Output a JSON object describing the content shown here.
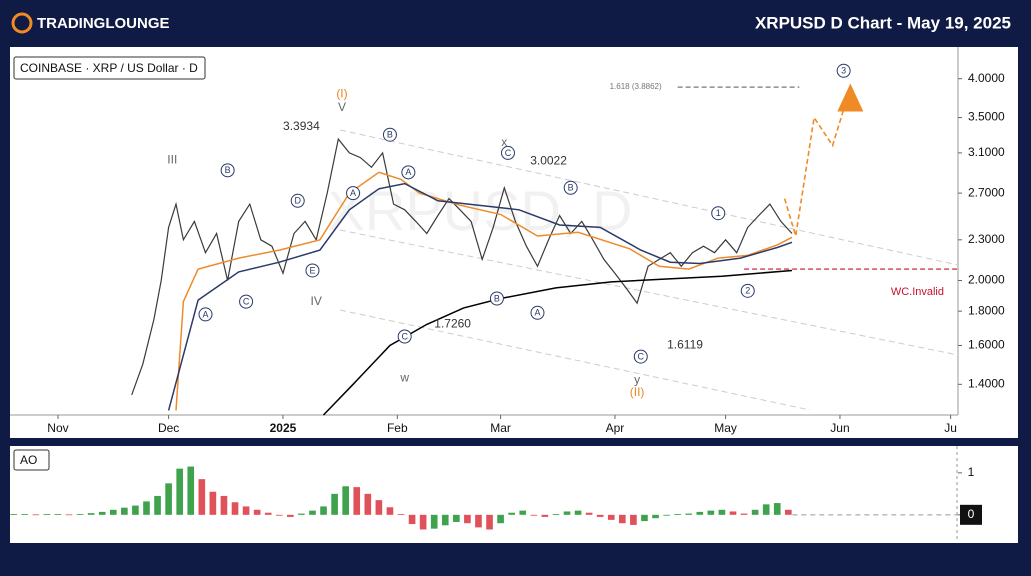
{
  "header": {
    "logo": "TRADINGLOUNGE",
    "title": "XRPUSD D Chart - May 19, 2025"
  },
  "chart_data": [
    {
      "type": "line",
      "title": "COINBASE · XRP / US Dollar · D",
      "watermark": "XRPUSD, D",
      "log_scale": true,
      "xlim": [
        -13,
        244
      ],
      "xticks": [
        {
          "value": 0,
          "label": "Nov"
        },
        {
          "value": 30,
          "label": "Dec"
        },
        {
          "value": 61,
          "label": "2025"
        },
        {
          "value": 92,
          "label": "Feb"
        },
        {
          "value": 120,
          "label": "Mar"
        },
        {
          "value": 151,
          "label": "Apr"
        },
        {
          "value": 181,
          "label": "May"
        },
        {
          "value": 212,
          "label": "Jun"
        },
        {
          "value": 242,
          "label": "Ju"
        }
      ],
      "ylim": [
        1.26,
        4.46
      ],
      "yticks": [
        {
          "value": 1.4,
          "label": "1.4000"
        },
        {
          "value": 1.6,
          "label": "1.6000"
        },
        {
          "value": 1.8,
          "label": "1.8000"
        },
        {
          "value": 2,
          "label": "2.0000"
        },
        {
          "value": 2.3,
          "label": "2.3000"
        },
        {
          "value": 2.7,
          "label": "2.7000"
        },
        {
          "value": 3.1,
          "label": "3.1000"
        },
        {
          "value": 3.5,
          "label": "3.5000"
        },
        {
          "value": 4,
          "label": "4.0000"
        }
      ],
      "series": [
        {
          "color": "#3a3a3a",
          "x": [
            20,
            23,
            26,
            28,
            30,
            32,
            34,
            37,
            40,
            43,
            46,
            49,
            52,
            55,
            58,
            61,
            64,
            67,
            70,
            73,
            76,
            79,
            82,
            85,
            88,
            91,
            94,
            97,
            100,
            103,
            106,
            109,
            112,
            115,
            118,
            121,
            124,
            127,
            130,
            133,
            136,
            139,
            142,
            145,
            148,
            151,
            154,
            157,
            160,
            163,
            166,
            169,
            172,
            175,
            178,
            181,
            184,
            187,
            190,
            193,
            196,
            199
          ],
          "values": [
            1.35,
            1.5,
            1.75,
            2.0,
            2.4,
            2.6,
            2.3,
            2.45,
            2.2,
            2.35,
            2.0,
            2.45,
            2.6,
            2.3,
            2.25,
            2.05,
            2.35,
            2.45,
            2.3,
            2.7,
            3.25,
            3.1,
            3.05,
            2.95,
            3.1,
            2.6,
            2.55,
            2.45,
            2.35,
            2.5,
            2.65,
            2.55,
            2.45,
            2.15,
            2.4,
            2.75,
            2.45,
            2.25,
            2.1,
            2.3,
            2.5,
            2.35,
            2.45,
            2.3,
            2.15,
            2.05,
            1.95,
            1.85,
            2.1,
            2.15,
            2.2,
            2.1,
            2.2,
            2.25,
            2.2,
            2.3,
            2.2,
            2.4,
            2.5,
            2.6,
            2.45,
            2.35
          ]
        },
        {
          "color": "#ef8a2a",
          "x": [
            32,
            34,
            38,
            49,
            60,
            71,
            79,
            87,
            93,
            98,
            109,
            120,
            130,
            141,
            155,
            163,
            171,
            179,
            187,
            195,
            199
          ],
          "values": [
            1.28,
            1.86,
            2.08,
            2.16,
            2.22,
            2.3,
            2.7,
            2.9,
            2.83,
            2.7,
            2.59,
            2.51,
            2.33,
            2.36,
            2.23,
            2.1,
            2.08,
            2.16,
            2.18,
            2.26,
            2.32
          ]
        },
        {
          "color": "#2b3a67",
          "x": [
            30,
            38,
            49,
            60,
            71,
            79,
            87,
            94,
            103,
            114,
            125,
            136,
            147,
            158,
            166,
            174,
            185,
            195,
            199
          ],
          "values": [
            1.28,
            1.87,
            2.06,
            2.13,
            2.22,
            2.55,
            2.74,
            2.79,
            2.63,
            2.59,
            2.55,
            2.42,
            2.4,
            2.22,
            2.13,
            2.12,
            2.16,
            2.24,
            2.28
          ]
        },
        {
          "color": "#000000",
          "x": [
            72,
            80,
            90,
            100,
            110,
            120,
            135,
            150,
            165,
            180,
            199
          ],
          "values": [
            1.26,
            1.4,
            1.6,
            1.72,
            1.82,
            1.88,
            1.95,
            1.99,
            2.01,
            2.03,
            2.07
          ]
        }
      ],
      "projection": {
        "color": "#f08a24",
        "x": [
          197,
          200,
          205,
          210,
          214
        ],
        "values": [
          2.65,
          2.33,
          3.5,
          3.18,
          3.75
        ]
      },
      "levels": [
        {
          "label": "1.618 (3.8862)",
          "value": 3.8862,
          "x": [
            168,
            201
          ],
          "color": "#777777"
        },
        {
          "label": "WC.Invalid",
          "value": 2.08,
          "x": [
            186,
            244
          ],
          "color": "#c8102e"
        }
      ],
      "annotations": [
        {
          "text": "(I)",
          "x": 77,
          "y": 3.79,
          "color": "#e8861f"
        },
        {
          "text": "V",
          "x": 77,
          "y": 3.62,
          "color": "#666666"
        },
        {
          "text": "3.3934",
          "x": 66,
          "y": 3.39,
          "color": "#333333"
        },
        {
          "text": "III",
          "x": 31,
          "y": 3.02,
          "color": "#666666"
        },
        {
          "text": "IV",
          "x": 70,
          "y": 1.86,
          "color": "#666666"
        },
        {
          "text": "w",
          "x": 94,
          "y": 1.43,
          "color": "#666666"
        },
        {
          "text": "x",
          "x": 121,
          "y": 3.21,
          "color": "#666666"
        },
        {
          "text": "3.0022",
          "x": 133,
          "y": 3.01,
          "color": "#333333"
        },
        {
          "text": "1.7260",
          "x": 107,
          "y": 1.72,
          "color": "#333333"
        },
        {
          "text": "1.6119",
          "x": 170,
          "y": 1.6,
          "color": "#333333"
        },
        {
          "text": "y",
          "x": 157,
          "y": 1.42,
          "color": "#666666"
        },
        {
          "text": "(II)",
          "x": 157,
          "y": 1.36,
          "color": "#e8861f"
        }
      ],
      "circled": [
        {
          "text": "B",
          "x": 46,
          "y": 2.92
        },
        {
          "text": "D",
          "x": 65,
          "y": 2.63
        },
        {
          "text": "A",
          "x": 40,
          "y": 1.78
        },
        {
          "text": "C",
          "x": 51,
          "y": 1.86
        },
        {
          "text": "E",
          "x": 69,
          "y": 2.07
        },
        {
          "text": "B",
          "x": 90,
          "y": 3.3
        },
        {
          "text": "A",
          "x": 80,
          "y": 2.7
        },
        {
          "text": "A",
          "x": 95,
          "y": 2.9
        },
        {
          "text": "C",
          "x": 94,
          "y": 1.65
        },
        {
          "text": "C",
          "x": 122,
          "y": 3.1
        },
        {
          "text": "B",
          "x": 139,
          "y": 2.75
        },
        {
          "text": "B",
          "x": 119,
          "y": 1.88
        },
        {
          "text": "A",
          "x": 130,
          "y": 1.79
        },
        {
          "text": "C",
          "x": 158,
          "y": 1.54
        },
        {
          "text": "1",
          "x": 179,
          "y": 2.52
        },
        {
          "text": "2",
          "x": 187,
          "y": 1.93
        },
        {
          "text": "3",
          "x": 213,
          "y": 4.11
        }
      ]
    },
    {
      "type": "bar",
      "title": "AO",
      "up_color": "#3fa34d",
      "down_color": "#e0525a",
      "ylim": [
        -0.6,
        1.64
      ],
      "yticks": [
        0,
        1
      ],
      "x": [
        -12,
        -9,
        -6,
        -3,
        0,
        3,
        6,
        9,
        12,
        15,
        18,
        21,
        24,
        27,
        30,
        33,
        36,
        39,
        42,
        45,
        48,
        51,
        54,
        57,
        60,
        63,
        66,
        69,
        72,
        75,
        78,
        81,
        84,
        87,
        90,
        93,
        96,
        99,
        102,
        105,
        108,
        111,
        114,
        117,
        120,
        123,
        126,
        129,
        132,
        135,
        138,
        141,
        144,
        147,
        150,
        153,
        156,
        159,
        162,
        165,
        168,
        171,
        174,
        177,
        180,
        183,
        186,
        189,
        192,
        195,
        198
      ],
      "values": [
        0.02,
        0.02,
        0.01,
        0.02,
        0.02,
        0.01,
        0.02,
        0.04,
        0.07,
        0.12,
        0.17,
        0.22,
        0.32,
        0.45,
        0.75,
        1.1,
        1.15,
        0.85,
        0.55,
        0.45,
        0.3,
        0.2,
        0.12,
        0.05,
        -0.02,
        -0.05,
        0.03,
        0.1,
        0.2,
        0.5,
        0.68,
        0.66,
        0.5,
        0.35,
        0.18,
        0.02,
        -0.22,
        -0.35,
        -0.33,
        -0.25,
        -0.17,
        -0.2,
        -0.3,
        -0.35,
        -0.2,
        0.05,
        0.1,
        -0.02,
        -0.05,
        0.02,
        0.08,
        0.1,
        0.05,
        -0.05,
        -0.12,
        -0.2,
        -0.24,
        -0.15,
        -0.08,
        -0.02,
        0.02,
        0.03,
        0.07,
        0.1,
        0.12,
        0.08,
        0.03,
        0.12,
        0.25,
        0.28,
        0.12
      ]
    }
  ]
}
